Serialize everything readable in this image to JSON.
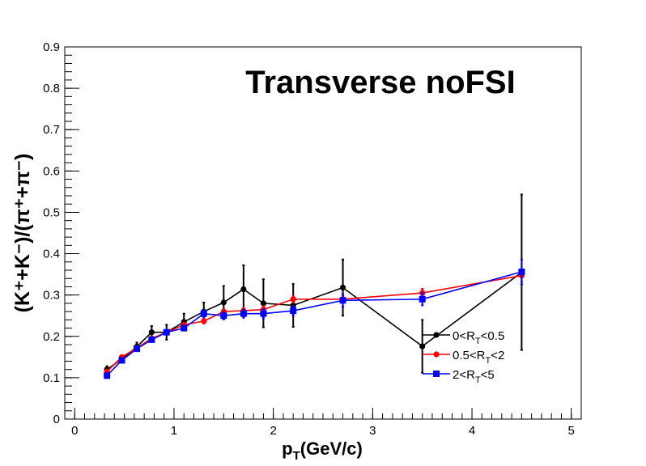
{
  "chart_data": {
    "type": "line",
    "title": "Transverse   noFSI",
    "xlabel": {
      "main": "p",
      "sub": "T",
      "rest": "(GeV/c)"
    },
    "ylabel": "(K⁺+K⁻)/(π⁺+π⁻)",
    "xlim": [
      -0.1,
      5.1
    ],
    "ylim": [
      0,
      0.9
    ],
    "xticks": [
      "0",
      "1",
      "2",
      "3",
      "4",
      "5"
    ],
    "yticks": [
      "0",
      "0.1",
      "0.2",
      "0.3",
      "0.4",
      "0.5",
      "0.6",
      "0.7",
      "0.8",
      "0.9"
    ],
    "legend_position": "bottom-right",
    "series": [
      {
        "name": "0<R_T<0.5",
        "legend": {
          "pre": "0<R",
          "sub": "T",
          "post": "<0.5"
        },
        "color": "#000000",
        "marker": "circle",
        "x": [
          0.325,
          0.475,
          0.625,
          0.775,
          0.925,
          1.1,
          1.3,
          1.5,
          1.7,
          1.9,
          2.2,
          2.7,
          3.5,
          4.5
        ],
        "y": [
          0.12,
          0.145,
          0.175,
          0.21,
          0.21,
          0.235,
          0.26,
          0.282,
          0.314,
          0.28,
          0.275,
          0.318,
          0.176,
          0.355
        ],
        "err": [
          0.008,
          0.008,
          0.01,
          0.015,
          0.018,
          0.02,
          0.022,
          0.04,
          0.058,
          0.058,
          0.052,
          0.068,
          0.064,
          0.188
        ]
      },
      {
        "name": "0.5<R_T<2",
        "legend": {
          "pre": "0.5<R",
          "sub": "T",
          "post": "<2"
        },
        "color": "#ff0000",
        "marker": "circle",
        "x": [
          0.325,
          0.475,
          0.625,
          0.775,
          0.925,
          1.1,
          1.3,
          1.5,
          1.7,
          1.9,
          2.2,
          2.7,
          3.5,
          4.5
        ],
        "y": [
          0.115,
          0.15,
          0.172,
          0.195,
          0.21,
          0.228,
          0.237,
          0.26,
          0.262,
          0.265,
          0.29,
          0.29,
          0.305,
          0.347
        ],
        "err": [
          0.003,
          0.003,
          0.004,
          0.004,
          0.005,
          0.005,
          0.006,
          0.006,
          0.007,
          0.008,
          0.008,
          0.008,
          0.01,
          0.014
        ]
      },
      {
        "name": "2<R_T<5",
        "legend": {
          "pre": "2<R",
          "sub": "T",
          "post": "<5"
        },
        "color": "#0000ff",
        "marker": "square",
        "x": [
          0.325,
          0.475,
          0.625,
          0.775,
          0.925,
          1.1,
          1.3,
          1.5,
          1.7,
          1.9,
          2.2,
          2.7,
          3.5,
          4.5
        ],
        "y": [
          0.105,
          0.142,
          0.17,
          0.192,
          0.21,
          0.22,
          0.255,
          0.25,
          0.255,
          0.255,
          0.262,
          0.287,
          0.29,
          0.356
        ],
        "err": [
          0.003,
          0.003,
          0.004,
          0.004,
          0.005,
          0.006,
          0.008,
          0.009,
          0.01,
          0.011,
          0.012,
          0.015,
          0.015,
          0.03
        ]
      }
    ]
  }
}
